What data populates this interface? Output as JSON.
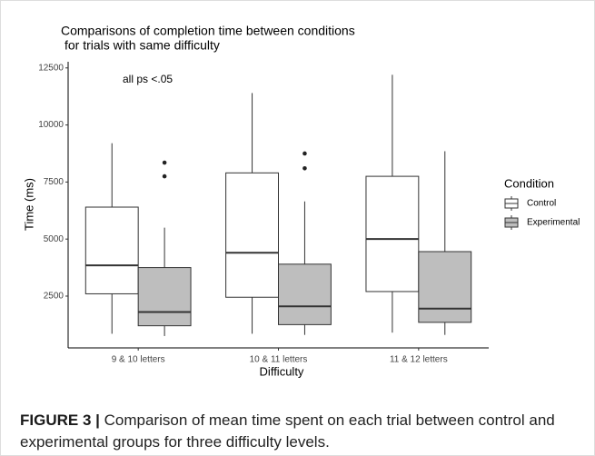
{
  "chart_data": {
    "type": "box",
    "title": [
      "Comparisons of completion time between conditions",
      "for trials with same difficulty"
    ],
    "annotation": "all ps <.05",
    "x_label": "Difficulty",
    "y_label": "Time (ms)",
    "legend_title": "Condition",
    "categories": [
      "9 & 10 letters",
      "10 & 11 letters",
      "11 & 12 letters"
    ],
    "series": [
      {
        "name": "Control",
        "color": "#ffffff",
        "min": [
          850,
          850,
          900
        ],
        "q1": [
          2600,
          2450,
          2700
        ],
        "median": [
          3850,
          4400,
          5000
        ],
        "q3": [
          6400,
          7900,
          7750
        ],
        "max": [
          9200,
          11400,
          12200
        ],
        "outliers": [
          [],
          [],
          []
        ]
      },
      {
        "name": "Experimental",
        "color": "#bebebe",
        "min": [
          750,
          800,
          800
        ],
        "q1": [
          1200,
          1250,
          1350
        ],
        "median": [
          1800,
          2050,
          1950
        ],
        "q3": [
          3750,
          3900,
          4450
        ],
        "max": [
          5500,
          6650,
          8850
        ],
        "outliers": [
          [
            7750,
            8350
          ],
          [
            8100,
            8750
          ],
          []
        ]
      }
    ],
    "ylim": [
      230,
      12770
    ],
    "yticks": [
      2500,
      5000,
      7500,
      10000,
      12500
    ]
  },
  "caption": {
    "label": "FIGURE 3 |",
    "text": "Comparison of mean time spent on each trial between control and experimental groups for three difficulty levels."
  }
}
